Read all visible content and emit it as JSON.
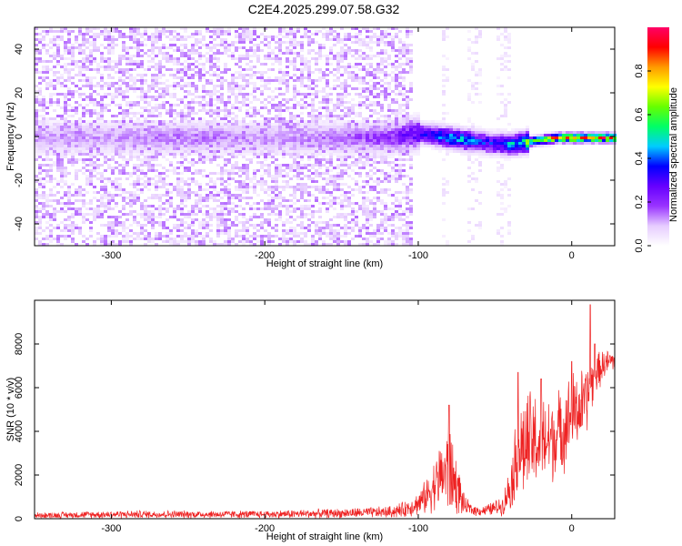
{
  "title": "C2E4.2025.299.07.58.G32",
  "chart_data": [
    {
      "type": "heatmap",
      "xlabel": "Height of straight line (km)",
      "ylabel": "Frequency (Hz)",
      "xlim": [
        -350,
        28
      ],
      "ylim": [
        -50,
        50
      ],
      "x_ticks": [
        -300,
        -200,
        -100,
        0
      ],
      "y_ticks": [
        -40,
        -20,
        0,
        20,
        40
      ],
      "colorbar": {
        "label": "Normalized spectral amplitude",
        "range": [
          0,
          1
        ],
        "ticks": [
          0.0,
          0.2,
          0.4,
          0.6,
          0.8
        ],
        "colors": [
          "#ffffff",
          "#e6ccff",
          "#9933ff",
          "#6600ff",
          "#0000ff",
          "#00ccff",
          "#00ff66",
          "#66ff00",
          "#ffff00",
          "#ff9900",
          "#ff0000",
          "#ff0066"
        ]
      },
      "ridge": {
        "x": [
          -350,
          -300,
          -250,
          -200,
          -150,
          -120,
          -100,
          -90,
          -80,
          -70,
          -60,
          -50,
          -40,
          -30,
          -20,
          -10,
          0,
          10,
          20,
          28
        ],
        "y": [
          0,
          0,
          0,
          0,
          0,
          0,
          2,
          1,
          0,
          -1,
          -2,
          -3,
          -3,
          -2,
          -1,
          0,
          0,
          0,
          0,
          0
        ],
        "amplitude": [
          0.12,
          0.12,
          0.15,
          0.12,
          0.15,
          0.2,
          0.3,
          0.4,
          0.45,
          0.45,
          0.35,
          0.35,
          0.45,
          0.6,
          0.7,
          0.8,
          0.85,
          0.8,
          0.85,
          0.85
        ]
      },
      "noise_extent": {
        "dense_until": -105,
        "sparse_bands": [
          [
            -85,
            -80
          ],
          [
            -70,
            -60
          ],
          [
            -50,
            -40
          ]
        ]
      }
    },
    {
      "type": "line",
      "xlabel": "Height of straight line (km)",
      "ylabel": "SNR (10 * v/v)",
      "xlim": [
        -350,
        28
      ],
      "ylim": [
        0,
        10000
      ],
      "x_ticks": [
        -300,
        -200,
        -100,
        0
      ],
      "y_ticks": [
        0,
        2000,
        4000,
        6000,
        8000
      ],
      "series": [
        {
          "color": "#ee2222",
          "envelope_x": [
            -350,
            -300,
            -250,
            -200,
            -150,
            -120,
            -110,
            -100,
            -95,
            -90,
            -85,
            -80,
            -75,
            -70,
            -65,
            -60,
            -55,
            -50,
            -45,
            -40,
            -35,
            -30,
            -25,
            -20,
            -15,
            -10,
            -5,
            0,
            5,
            10,
            15,
            20,
            28
          ],
          "base": [
            150,
            200,
            200,
            200,
            250,
            300,
            400,
            700,
            1000,
            1500,
            2000,
            2200,
            1500,
            600,
            400,
            350,
            400,
            500,
            600,
            1500,
            3000,
            3300,
            3500,
            3400,
            3600,
            3800,
            4200,
            4800,
            5000,
            5500,
            6500,
            7000,
            7300
          ],
          "amplitude": [
            150,
            200,
            200,
            200,
            250,
            300,
            400,
            600,
            900,
            1300,
            1800,
            2500,
            1500,
            500,
            300,
            250,
            300,
            400,
            500,
            1200,
            2500,
            2800,
            2800,
            2600,
            2400,
            2200,
            2200,
            2200,
            2000,
            1800,
            1200,
            800,
            600
          ],
          "peaks": [
            [
              -80,
              5200
            ],
            [
              -35,
              6700
            ],
            [
              -20,
              6400
            ],
            [
              0,
              7200
            ],
            [
              12,
              9800
            ],
            [
              15,
              8000
            ]
          ]
        }
      ]
    }
  ]
}
